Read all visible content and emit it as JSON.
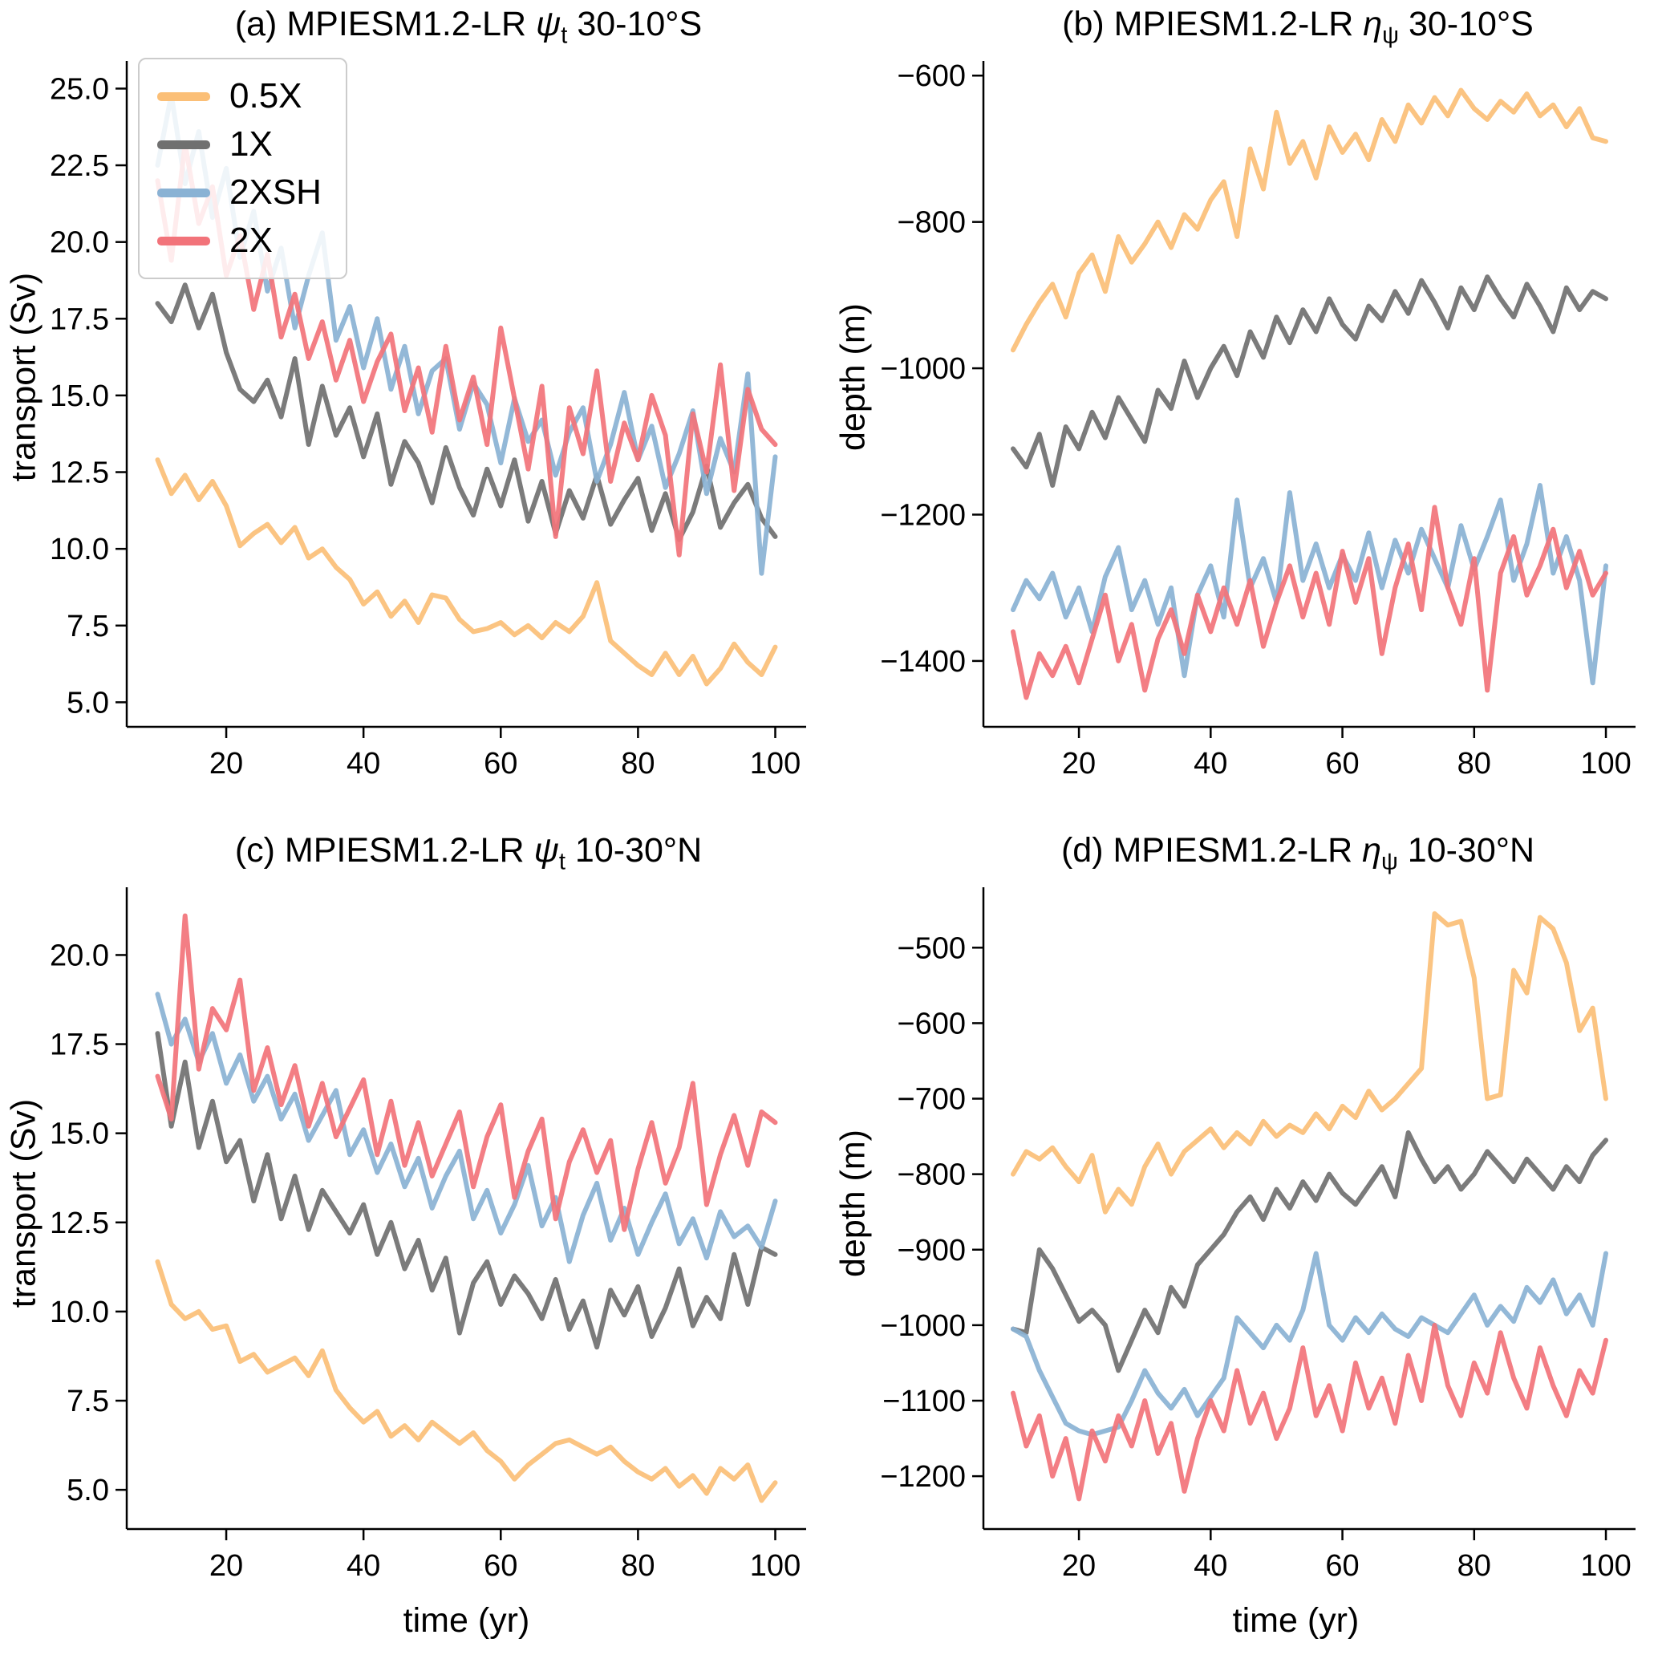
{
  "legend": {
    "position": "upper left",
    "entries": [
      "0.5X",
      "1X",
      "2XSH",
      "2X"
    ]
  },
  "colors": {
    "half": "#FBBF77",
    "one": "#707070",
    "twoSH": "#8AB2D4",
    "two": "#F2737A"
  },
  "chart_data": [
    {
      "type": "line",
      "panel": "a",
      "title": {
        "prefix": "(a) MPIESM1.2-LR ",
        "symbol": "ψ",
        "sub": "t",
        "suffix": " 30-10°S"
      },
      "ylabel": "transport (Sv)",
      "x": {
        "start": 10,
        "step": 2
      },
      "xlim": [
        5.5,
        104.5
      ],
      "xticks": [
        20,
        40,
        60,
        80,
        100
      ],
      "ylim": [
        4.2,
        25.9
      ],
      "yticks": [
        5.0,
        7.5,
        10.0,
        12.5,
        15.0,
        17.5,
        20.0,
        22.5,
        25.0
      ],
      "ytick_decimals": 1,
      "series": [
        {
          "name": "0.5X",
          "color": "#FBBF77",
          "values": [
            12.9,
            11.8,
            12.4,
            11.6,
            12.2,
            11.4,
            10.1,
            10.5,
            10.8,
            10.2,
            10.7,
            9.7,
            10.0,
            9.4,
            9.0,
            8.2,
            8.6,
            7.8,
            8.3,
            7.6,
            8.5,
            8.4,
            7.7,
            7.3,
            7.4,
            7.6,
            7.2,
            7.5,
            7.1,
            7.6,
            7.3,
            7.8,
            8.9,
            7.0,
            6.6,
            6.2,
            5.9,
            6.6,
            5.9,
            6.5,
            5.6,
            6.1,
            6.9,
            6.3,
            5.9,
            6.8
          ]
        },
        {
          "name": "1X",
          "color": "#707070",
          "values": [
            18.0,
            17.4,
            18.6,
            17.2,
            18.3,
            16.4,
            15.2,
            14.8,
            15.5,
            14.3,
            16.2,
            13.4,
            15.3,
            13.7,
            14.6,
            13.0,
            14.4,
            12.1,
            13.5,
            12.8,
            11.5,
            13.3,
            12.0,
            11.1,
            12.6,
            11.4,
            12.9,
            10.9,
            12.2,
            10.5,
            11.9,
            11.0,
            12.4,
            10.8,
            11.6,
            12.3,
            10.6,
            11.8,
            10.3,
            11.2,
            12.7,
            10.7,
            11.5,
            12.1,
            11.0,
            10.4
          ]
        },
        {
          "name": "2XSH",
          "color": "#8AB2D4",
          "values": [
            22.5,
            24.8,
            21.9,
            23.6,
            20.8,
            22.4,
            19.5,
            21.0,
            18.4,
            19.8,
            17.2,
            18.9,
            20.3,
            16.8,
            17.9,
            15.9,
            17.5,
            15.2,
            16.6,
            14.4,
            15.8,
            16.2,
            13.9,
            15.4,
            14.7,
            12.8,
            14.9,
            13.5,
            14.2,
            12.4,
            13.8,
            14.6,
            12.2,
            13.4,
            15.1,
            12.9,
            14.0,
            12.0,
            13.1,
            14.5,
            11.8,
            13.6,
            12.5,
            15.7,
            9.2,
            13.0
          ]
        },
        {
          "name": "2X",
          "color": "#F2737A",
          "values": [
            22.0,
            19.4,
            23.2,
            20.6,
            21.8,
            18.9,
            20.2,
            17.8,
            19.6,
            16.9,
            18.3,
            16.2,
            17.4,
            15.5,
            16.8,
            14.8,
            16.1,
            17.0,
            14.5,
            15.9,
            13.8,
            16.6,
            14.2,
            15.6,
            13.4,
            17.2,
            14.9,
            12.6,
            15.3,
            10.4,
            14.6,
            13.1,
            15.8,
            12.2,
            14.1,
            12.9,
            15.0,
            13.7,
            9.8,
            14.4,
            12.5,
            16.0,
            11.9,
            15.2,
            13.9,
            13.4
          ]
        }
      ]
    },
    {
      "type": "line",
      "panel": "b",
      "title": {
        "prefix": "(b) MPIESM1.2-LR ",
        "symbol": "η",
        "sub": "ψ",
        "suffix": " 30-10°S"
      },
      "ylabel": "depth (m)",
      "x": {
        "start": 10,
        "step": 2
      },
      "xlim": [
        5.5,
        104.5
      ],
      "xticks": [
        20,
        40,
        60,
        80,
        100
      ],
      "ylim": [
        -1490,
        -580
      ],
      "yticks": [
        -1400,
        -1200,
        -1000,
        -800,
        -600
      ],
      "ytick_decimals": 0,
      "series": [
        {
          "name": "0.5X",
          "color": "#FBBF77",
          "values": [
            -975,
            -940,
            -910,
            -885,
            -930,
            -870,
            -845,
            -895,
            -820,
            -855,
            -830,
            -800,
            -835,
            -790,
            -810,
            -770,
            -745,
            -820,
            -700,
            -755,
            -650,
            -720,
            -690,
            -740,
            -670,
            -705,
            -680,
            -715,
            -660,
            -690,
            -640,
            -665,
            -630,
            -655,
            -620,
            -645,
            -660,
            -635,
            -650,
            -625,
            -655,
            -640,
            -670,
            -645,
            -685,
            -690
          ]
        },
        {
          "name": "1X",
          "color": "#707070",
          "values": [
            -1110,
            -1135,
            -1090,
            -1160,
            -1080,
            -1110,
            -1060,
            -1095,
            -1040,
            -1070,
            -1100,
            -1030,
            -1055,
            -990,
            -1040,
            -1000,
            -970,
            -1010,
            -950,
            -985,
            -930,
            -965,
            -920,
            -950,
            -905,
            -940,
            -960,
            -915,
            -935,
            -895,
            -925,
            -880,
            -910,
            -945,
            -890,
            -920,
            -875,
            -905,
            -930,
            -885,
            -915,
            -950,
            -890,
            -920,
            -895,
            -905
          ]
        },
        {
          "name": "2XSH",
          "color": "#8AB2D4",
          "values": [
            -1330,
            -1290,
            -1315,
            -1280,
            -1340,
            -1300,
            -1360,
            -1285,
            -1245,
            -1330,
            -1290,
            -1350,
            -1300,
            -1420,
            -1310,
            -1270,
            -1340,
            -1180,
            -1300,
            -1260,
            -1320,
            -1170,
            -1290,
            -1240,
            -1300,
            -1255,
            -1290,
            -1225,
            -1300,
            -1235,
            -1280,
            -1220,
            -1260,
            -1300,
            -1215,
            -1275,
            -1230,
            -1180,
            -1290,
            -1240,
            -1160,
            -1280,
            -1230,
            -1290,
            -1430,
            -1270
          ]
        },
        {
          "name": "2X",
          "color": "#F2737A",
          "values": [
            -1360,
            -1450,
            -1390,
            -1420,
            -1380,
            -1430,
            -1370,
            -1310,
            -1400,
            -1350,
            -1440,
            -1370,
            -1330,
            -1390,
            -1310,
            -1360,
            -1300,
            -1350,
            -1290,
            -1380,
            -1320,
            -1270,
            -1340,
            -1280,
            -1350,
            -1250,
            -1320,
            -1260,
            -1390,
            -1300,
            -1240,
            -1330,
            -1190,
            -1300,
            -1350,
            -1260,
            -1440,
            -1280,
            -1230,
            -1310,
            -1270,
            -1220,
            -1300,
            -1250,
            -1310,
            -1280
          ]
        }
      ]
    },
    {
      "type": "line",
      "panel": "c",
      "title": {
        "prefix": "(c) MPIESM1.2-LR ",
        "symbol": "ψ",
        "sub": "t",
        "suffix": " 10-30°N"
      },
      "ylabel": "transport (Sv)",
      "xlabel": "time (yr)",
      "x": {
        "start": 10,
        "step": 2
      },
      "xlim": [
        5.5,
        104.5
      ],
      "xticks": [
        20,
        40,
        60,
        80,
        100
      ],
      "ylim": [
        3.9,
        21.9
      ],
      "yticks": [
        5.0,
        7.5,
        10.0,
        12.5,
        15.0,
        17.5,
        20.0
      ],
      "ytick_decimals": 1,
      "series": [
        {
          "name": "0.5X",
          "color": "#FBBF77",
          "values": [
            11.4,
            10.2,
            9.8,
            10.0,
            9.5,
            9.6,
            8.6,
            8.8,
            8.3,
            8.5,
            8.7,
            8.2,
            8.9,
            7.8,
            7.3,
            6.9,
            7.2,
            6.5,
            6.8,
            6.4,
            6.9,
            6.6,
            6.3,
            6.6,
            6.1,
            5.8,
            5.3,
            5.7,
            6.0,
            6.3,
            6.4,
            6.2,
            6.0,
            6.2,
            5.8,
            5.5,
            5.3,
            5.6,
            5.1,
            5.4,
            4.9,
            5.6,
            5.3,
            5.7,
            4.7,
            5.2
          ]
        },
        {
          "name": "1X",
          "color": "#707070",
          "values": [
            17.8,
            15.2,
            17.0,
            14.6,
            15.9,
            14.2,
            14.8,
            13.1,
            14.4,
            12.6,
            13.8,
            12.3,
            13.4,
            12.8,
            12.2,
            13.0,
            11.6,
            12.5,
            11.2,
            12.0,
            10.6,
            11.5,
            9.4,
            10.8,
            11.4,
            10.2,
            11.0,
            10.5,
            9.8,
            10.9,
            9.5,
            10.3,
            9.0,
            10.6,
            9.9,
            10.7,
            9.3,
            10.1,
            11.2,
            9.6,
            10.4,
            9.8,
            11.6,
            10.2,
            11.8,
            11.6
          ]
        },
        {
          "name": "2XSH",
          "color": "#8AB2D4",
          "values": [
            18.9,
            17.5,
            18.2,
            17.0,
            17.8,
            16.4,
            17.2,
            15.9,
            16.6,
            15.4,
            16.1,
            14.8,
            15.5,
            16.2,
            14.4,
            15.1,
            13.9,
            14.7,
            13.5,
            14.3,
            12.9,
            13.8,
            14.5,
            12.6,
            13.4,
            12.2,
            13.0,
            14.1,
            12.4,
            13.2,
            11.4,
            12.7,
            13.6,
            12.0,
            12.9,
            11.6,
            12.5,
            13.3,
            11.9,
            12.6,
            11.5,
            12.8,
            12.1,
            12.4,
            11.8,
            13.1
          ]
        },
        {
          "name": "2X",
          "color": "#F2737A",
          "values": [
            16.6,
            15.4,
            21.1,
            16.8,
            18.5,
            17.9,
            19.3,
            16.2,
            17.4,
            15.8,
            16.9,
            15.2,
            16.4,
            14.9,
            15.7,
            16.5,
            14.4,
            15.9,
            14.1,
            15.3,
            13.8,
            14.7,
            15.6,
            13.5,
            14.9,
            15.8,
            13.2,
            14.5,
            15.4,
            12.6,
            14.2,
            15.1,
            13.9,
            14.8,
            12.3,
            14.0,
            15.3,
            13.6,
            14.6,
            16.4,
            13.0,
            14.4,
            15.5,
            14.1,
            15.6,
            15.3
          ]
        }
      ]
    },
    {
      "type": "line",
      "panel": "d",
      "title": {
        "prefix": "(d) MPIESM1.2-LR ",
        "symbol": "η",
        "sub": "ψ",
        "suffix": " 10-30°N"
      },
      "ylabel": "depth (m)",
      "xlabel": "time (yr)",
      "x": {
        "start": 10,
        "step": 2
      },
      "xlim": [
        5.5,
        104.5
      ],
      "xticks": [
        20,
        40,
        60,
        80,
        100
      ],
      "ylim": [
        -1270,
        -420
      ],
      "yticks": [
        -1200,
        -1100,
        -1000,
        -900,
        -800,
        -700,
        -600,
        -500
      ],
      "ytick_decimals": 0,
      "series": [
        {
          "name": "0.5X",
          "color": "#FBBF77",
          "values": [
            -800,
            -770,
            -780,
            -765,
            -790,
            -810,
            -775,
            -850,
            -820,
            -840,
            -790,
            -760,
            -800,
            -770,
            -755,
            -740,
            -765,
            -745,
            -760,
            -730,
            -750,
            -735,
            -745,
            -720,
            -740,
            -710,
            -725,
            -690,
            -715,
            -700,
            -680,
            -660,
            -455,
            -470,
            -465,
            -540,
            -700,
            -695,
            -530,
            -560,
            -460,
            -475,
            -520,
            -610,
            -580,
            -700
          ]
        },
        {
          "name": "1X",
          "color": "#707070",
          "values": [
            -1005,
            -1010,
            -900,
            -925,
            -960,
            -995,
            -980,
            -1000,
            -1060,
            -1020,
            -980,
            -1010,
            -950,
            -975,
            -920,
            -900,
            -880,
            -850,
            -830,
            -860,
            -820,
            -845,
            -810,
            -835,
            -800,
            -825,
            -840,
            -815,
            -790,
            -830,
            -745,
            -780,
            -810,
            -790,
            -820,
            -800,
            -770,
            -790,
            -810,
            -780,
            -800,
            -820,
            -790,
            -810,
            -775,
            -755
          ]
        },
        {
          "name": "2XSH",
          "color": "#8AB2D4",
          "values": [
            -1005,
            -1015,
            -1060,
            -1095,
            -1130,
            -1140,
            -1145,
            -1140,
            -1135,
            -1100,
            -1060,
            -1090,
            -1110,
            -1085,
            -1120,
            -1095,
            -1070,
            -990,
            -1010,
            -1030,
            -1000,
            -1020,
            -980,
            -905,
            -1000,
            -1020,
            -990,
            -1010,
            -985,
            -1005,
            -1015,
            -990,
            -1000,
            -1010,
            -985,
            -960,
            -1000,
            -975,
            -995,
            -950,
            -970,
            -940,
            -985,
            -960,
            -1000,
            -905
          ]
        },
        {
          "name": "2X",
          "color": "#F2737A",
          "values": [
            -1090,
            -1160,
            -1120,
            -1200,
            -1150,
            -1230,
            -1140,
            -1180,
            -1120,
            -1160,
            -1100,
            -1170,
            -1130,
            -1220,
            -1150,
            -1100,
            -1140,
            -1060,
            -1130,
            -1090,
            -1150,
            -1110,
            -1030,
            -1120,
            -1080,
            -1140,
            -1050,
            -1110,
            -1070,
            -1130,
            -1040,
            -1100,
            -1000,
            -1080,
            -1120,
            -1050,
            -1090,
            -1010,
            -1070,
            -1110,
            -1030,
            -1080,
            -1120,
            -1060,
            -1090,
            -1020
          ]
        }
      ]
    }
  ]
}
